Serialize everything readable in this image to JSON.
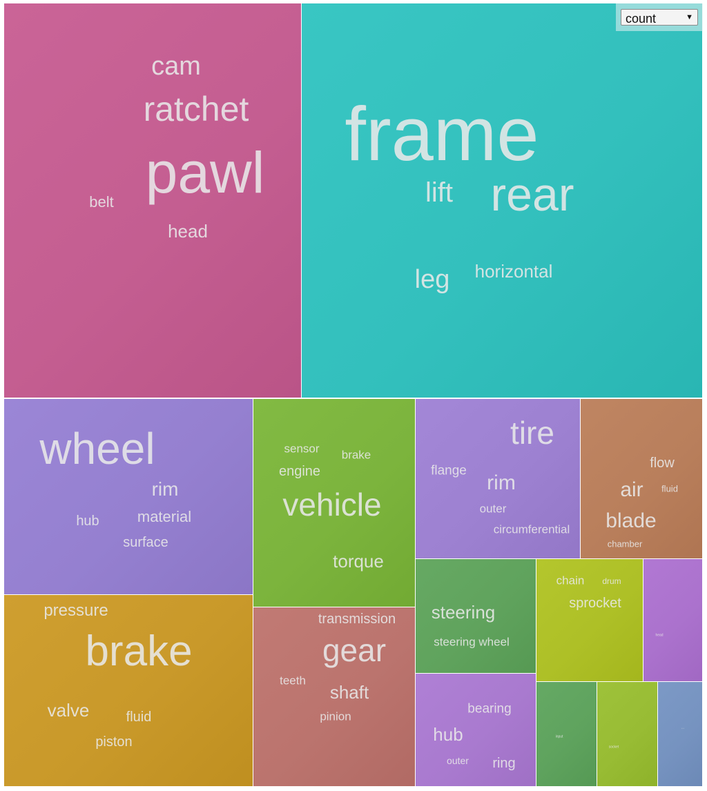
{
  "control": {
    "metric": "count",
    "arrow": "▼"
  },
  "chart_data": {
    "type": "treemap",
    "groups": [
      {
        "words": [
          {
            "t": "pawl"
          },
          {
            "t": "ratchet"
          },
          {
            "t": "cam"
          },
          {
            "t": "belt"
          },
          {
            "t": "head"
          }
        ],
        "color": "#c45e91"
      },
      {
        "words": [
          {
            "t": "frame"
          },
          {
            "t": "rear"
          },
          {
            "t": "lift"
          },
          {
            "t": "leg"
          },
          {
            "t": "horizontal"
          }
        ],
        "color": "#33c0bd"
      },
      {
        "words": [
          {
            "t": "wheel"
          },
          {
            "t": "rim"
          },
          {
            "t": "material"
          },
          {
            "t": "hub"
          },
          {
            "t": "surface"
          }
        ],
        "color": "#9580d0"
      },
      {
        "words": [
          {
            "t": "brake"
          },
          {
            "t": "pressure"
          },
          {
            "t": "valve"
          },
          {
            "t": "fluid"
          },
          {
            "t": "piston"
          }
        ],
        "color": "#c9992a"
      },
      {
        "words": [
          {
            "t": "vehicle"
          },
          {
            "t": "engine"
          },
          {
            "t": "sensor"
          },
          {
            "t": "brake"
          },
          {
            "t": "torque"
          }
        ],
        "color": "#7cb43d"
      },
      {
        "words": [
          {
            "t": "gear"
          },
          {
            "t": "transmission"
          },
          {
            "t": "shaft"
          },
          {
            "t": "teeth"
          },
          {
            "t": "pinion"
          }
        ],
        "color": "#bb746e"
      },
      {
        "words": [
          {
            "t": "tire"
          },
          {
            "t": "rim"
          },
          {
            "t": "flange"
          },
          {
            "t": "outer"
          },
          {
            "t": "circumferential"
          }
        ],
        "color": "#9d81d1"
      },
      {
        "words": [
          {
            "t": "air"
          },
          {
            "t": "blade"
          },
          {
            "t": "flow"
          },
          {
            "t": "fluid"
          },
          {
            "t": "chamber"
          }
        ],
        "color": "#b97f5c"
      },
      {
        "words": [
          {
            "t": "steering"
          },
          {
            "t": "steering wheel"
          }
        ],
        "color": "#60a35d"
      },
      {
        "words": [
          {
            "t": "sprocket"
          },
          {
            "t": "chain"
          },
          {
            "t": "drum"
          }
        ],
        "color": "#aec027"
      },
      {
        "words": [
          {
            "t": "head"
          }
        ],
        "color": "#ab72cd"
      },
      {
        "words": [
          {
            "t": "hub"
          },
          {
            "t": "bearing"
          },
          {
            "t": "ring"
          },
          {
            "t": "outer"
          }
        ],
        "color": "#a97acf"
      },
      {
        "words": [
          {
            "t": "input"
          }
        ],
        "color": "#5fa35e"
      },
      {
        "words": [
          {
            "t": "socket"
          }
        ],
        "color": "#98bc34"
      },
      {
        "words": [
          {
            "t": "..."
          }
        ],
        "color": "#7693c0"
      }
    ]
  }
}
